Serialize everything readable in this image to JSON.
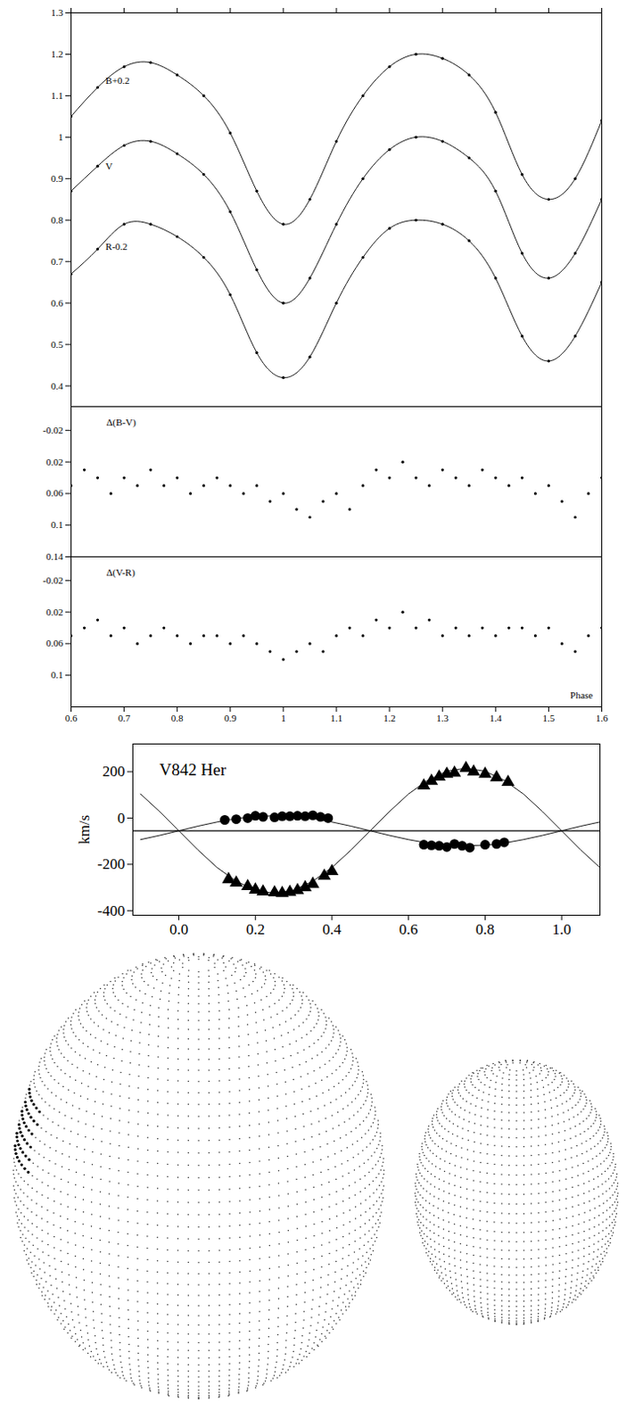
{
  "chart_data": [
    {
      "type": "line",
      "tick_labels": "y",
      "xlim": [
        0.6,
        1.6
      ],
      "xticks": [
        0.6,
        0.7,
        0.8,
        0.9,
        1,
        1.1,
        1.2,
        1.3,
        1.4,
        1.5,
        1.6
      ],
      "ylim": [
        0.35,
        1.3
      ],
      "yticks": [
        0.4,
        0.5,
        0.6,
        0.7,
        0.8,
        0.9,
        1,
        1.1,
        1.2,
        1.3
      ],
      "x": [
        0.6,
        0.65,
        0.7,
        0.75,
        0.8,
        0.85,
        0.9,
        0.95,
        1.0,
        1.05,
        1.1,
        1.15,
        1.2,
        1.25,
        1.3,
        1.35,
        1.4,
        1.45,
        1.5,
        1.55,
        1.6
      ],
      "series": [
        {
          "name": "B+0.2",
          "color": "#000000",
          "marker": "dot",
          "line_style": "solid",
          "values": [
            1.05,
            1.12,
            1.17,
            1.18,
            1.15,
            1.1,
            1.01,
            0.87,
            0.79,
            0.85,
            0.99,
            1.1,
            1.17,
            1.2,
            1.19,
            1.15,
            1.06,
            0.91,
            0.85,
            0.9,
            1.04
          ]
        },
        {
          "name": "V",
          "color": "#000000",
          "marker": "dot",
          "line_style": "solid",
          "values": [
            0.87,
            0.93,
            0.98,
            0.99,
            0.96,
            0.91,
            0.82,
            0.68,
            0.6,
            0.66,
            0.79,
            0.9,
            0.97,
            1.0,
            0.99,
            0.95,
            0.87,
            0.72,
            0.66,
            0.72,
            0.85
          ]
        },
        {
          "name": "R-0.2",
          "color": "#000000",
          "marker": "dot",
          "line_style": "solid",
          "values": [
            0.67,
            0.73,
            0.79,
            0.79,
            0.76,
            0.71,
            0.62,
            0.48,
            0.42,
            0.47,
            0.6,
            0.71,
            0.78,
            0.8,
            0.79,
            0.75,
            0.66,
            0.52,
            0.46,
            0.52,
            0.65
          ]
        }
      ]
    },
    {
      "type": "scatter",
      "title": "Δ(B-V)",
      "tick_labels": "y",
      "marker": "dot",
      "color": "#000000",
      "xlim": [
        0.6,
        1.6
      ],
      "xticks": [
        0.6,
        0.7,
        0.8,
        0.9,
        1,
        1.1,
        1.2,
        1.3,
        1.4,
        1.5,
        1.6
      ],
      "ylim": [
        0.14,
        -0.05
      ],
      "yticks": [
        -0.02,
        0.02,
        0.06,
        0.1,
        0.14
      ],
      "x": [
        0.6,
        0.625,
        0.65,
        0.675,
        0.7,
        0.725,
        0.75,
        0.775,
        0.8,
        0.825,
        0.85,
        0.875,
        0.9,
        0.925,
        0.95,
        0.975,
        1.0,
        1.025,
        1.05,
        1.075,
        1.1,
        1.125,
        1.15,
        1.175,
        1.2,
        1.225,
        1.25,
        1.275,
        1.3,
        1.325,
        1.35,
        1.375,
        1.4,
        1.425,
        1.45,
        1.475,
        1.5,
        1.525,
        1.55,
        1.575,
        1.6
      ],
      "values": [
        0.05,
        0.03,
        0.04,
        0.06,
        0.04,
        0.05,
        0.03,
        0.05,
        0.04,
        0.06,
        0.05,
        0.04,
        0.05,
        0.06,
        0.05,
        0.07,
        0.06,
        0.08,
        0.09,
        0.07,
        0.06,
        0.08,
        0.05,
        0.03,
        0.04,
        0.02,
        0.04,
        0.05,
        0.03,
        0.04,
        0.05,
        0.03,
        0.04,
        0.05,
        0.04,
        0.06,
        0.05,
        0.07,
        0.09,
        0.06,
        0.04
      ]
    },
    {
      "type": "scatter",
      "title": "Δ(V-R)",
      "xlabel": "Phase",
      "marker": "dot",
      "color": "#000000",
      "xlim": [
        0.6,
        1.6
      ],
      "xticks": [
        0.6,
        0.7,
        0.8,
        0.9,
        1,
        1.1,
        1.2,
        1.3,
        1.4,
        1.5,
        1.6
      ],
      "ylim": [
        0.14,
        -0.05
      ],
      "yticks": [
        -0.02,
        0.02,
        0.06,
        0.1
      ],
      "x": [
        0.6,
        0.625,
        0.65,
        0.675,
        0.7,
        0.725,
        0.75,
        0.775,
        0.8,
        0.825,
        0.85,
        0.875,
        0.9,
        0.925,
        0.95,
        0.975,
        1.0,
        1.025,
        1.05,
        1.075,
        1.1,
        1.125,
        1.15,
        1.175,
        1.2,
        1.225,
        1.25,
        1.275,
        1.3,
        1.325,
        1.35,
        1.375,
        1.4,
        1.425,
        1.45,
        1.475,
        1.5,
        1.525,
        1.55,
        1.575,
        1.6
      ],
      "values": [
        0.05,
        0.04,
        0.03,
        0.05,
        0.04,
        0.06,
        0.05,
        0.04,
        0.05,
        0.06,
        0.05,
        0.05,
        0.06,
        0.05,
        0.06,
        0.07,
        0.08,
        0.07,
        0.06,
        0.07,
        0.05,
        0.04,
        0.05,
        0.03,
        0.04,
        0.02,
        0.04,
        0.03,
        0.05,
        0.04,
        0.05,
        0.04,
        0.05,
        0.04,
        0.04,
        0.05,
        0.04,
        0.06,
        0.07,
        0.05,
        0.04
      ]
    },
    {
      "type": "scatter",
      "title": "V842 Her",
      "ylabel": "km/s",
      "xlim": [
        -0.12,
        1.1
      ],
      "xticks": [
        {
          "value": 0,
          "label": "0.0"
        },
        0.2,
        0.4,
        0.6,
        0.8,
        {
          "value": 1,
          "label": "1.0"
        }
      ],
      "ylim": [
        -420,
        320
      ],
      "yticks": [
        -400,
        -200,
        0,
        200
      ],
      "systemic_velocity": -55,
      "series": [
        {
          "marker": "circle",
          "color": "#000000",
          "line_style": "none",
          "x": [
            0.12,
            0.15,
            0.18,
            0.2,
            0.22,
            0.25,
            0.27,
            0.29,
            0.31,
            0.33,
            0.35,
            0.37,
            0.39,
            0.64,
            0.66,
            0.68,
            0.7,
            0.72,
            0.74,
            0.76,
            0.8,
            0.83,
            0.85
          ],
          "values": [
            -8,
            -5,
            0,
            10,
            5,
            3,
            8,
            8,
            10,
            8,
            12,
            5,
            0,
            -115,
            -118,
            -120,
            -125,
            -112,
            -120,
            -128,
            -115,
            -112,
            -105
          ]
        },
        {
          "marker": "triangle",
          "color": "#000000",
          "line_style": "none",
          "x": [
            0.13,
            0.15,
            0.18,
            0.2,
            0.22,
            0.25,
            0.27,
            0.29,
            0.31,
            0.33,
            0.35,
            0.38,
            0.4,
            0.64,
            0.66,
            0.68,
            0.7,
            0.72,
            0.75,
            0.77,
            0.8,
            0.83,
            0.86
          ],
          "values": [
            -265,
            -280,
            -295,
            -310,
            -318,
            -322,
            -325,
            -320,
            -312,
            -300,
            -285,
            -250,
            -230,
            140,
            160,
            178,
            190,
            195,
            215,
            200,
            190,
            175,
            155
          ]
        },
        {
          "type": "line",
          "marker": "none",
          "color": "#000000",
          "line_style": "solid",
          "x": [
            -0.1,
            -0.05,
            0,
            0.05,
            0.1,
            0.15,
            0.2,
            0.25,
            0.3,
            0.35,
            0.4,
            0.45,
            0.5,
            0.55,
            0.6,
            0.65,
            0.7,
            0.75,
            0.8,
            0.85,
            0.9,
            0.95,
            1.0,
            1.05,
            1.1
          ],
          "values": [
            -93,
            -75,
            -55,
            -35,
            -17,
            -2,
            7,
            10,
            7,
            -2,
            -17,
            -35,
            -55,
            -75,
            -93,
            -108,
            -117,
            -120,
            -117,
            -108,
            -93,
            -75,
            -55,
            -35,
            -17
          ]
        },
        {
          "type": "line",
          "marker": "none",
          "color": "#000000",
          "line_style": "solid",
          "x": [
            -0.1,
            -0.05,
            0,
            0.05,
            0.1,
            0.15,
            0.2,
            0.25,
            0.3,
            0.35,
            0.4,
            0.45,
            0.5,
            0.55,
            0.6,
            0.65,
            0.7,
            0.75,
            0.8,
            0.85,
            0.9,
            0.95,
            1.0,
            1.05,
            1.1
          ],
          "values": [
            104,
            28,
            -55,
            -138,
            -214,
            -273,
            -312,
            -325,
            -312,
            -273,
            -214,
            -138,
            -55,
            28,
            104,
            163,
            202,
            215,
            202,
            163,
            104,
            28,
            -55,
            -138,
            -214
          ]
        }
      ]
    }
  ]
}
